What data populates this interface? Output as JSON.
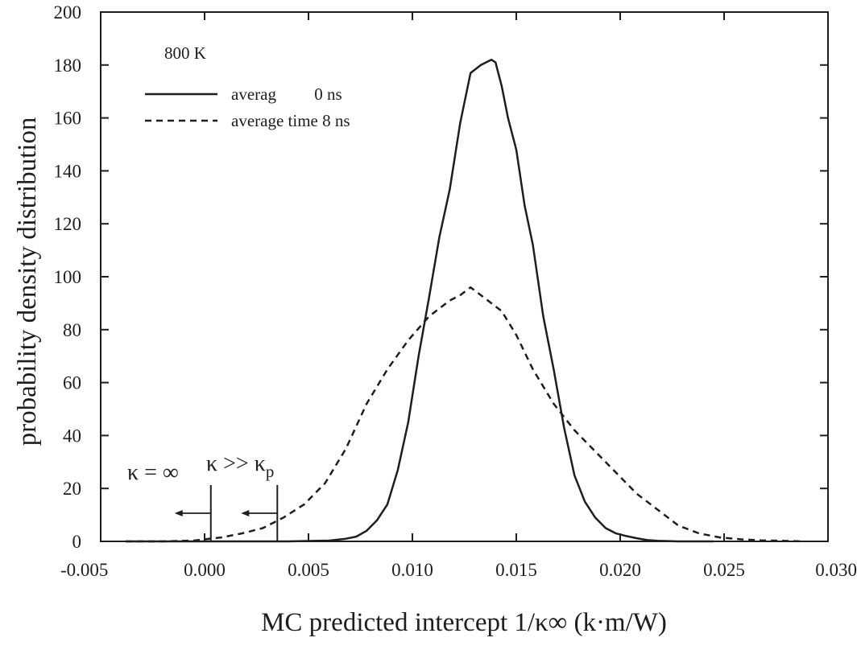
{
  "chart_data": {
    "type": "line",
    "title": "",
    "xlabel": "MC predicted intercept 1/κ∞ (k·m/W)",
    "ylabel": "probability density distribution",
    "xlim": [
      -0.005,
      0.03
    ],
    "ylim": [
      0,
      200
    ],
    "x_ticks": [
      -0.005,
      0.0,
      0.005,
      0.01,
      0.015,
      0.02,
      0.025,
      0.03
    ],
    "x_tick_labels": [
      "-0.005",
      "0.000",
      "0.005",
      "0.010",
      "0.015",
      "0.020",
      "0.025",
      "0.030"
    ],
    "y_ticks": [
      0,
      20,
      40,
      60,
      80,
      100,
      120,
      140,
      160,
      180,
      200
    ],
    "y_tick_labels": [
      "0",
      "20",
      "40",
      "60",
      "80",
      "100",
      "120",
      "140",
      "160",
      "180",
      "200"
    ],
    "grid": false,
    "legend_title": "800 K",
    "legend_position": "top-left",
    "series": [
      {
        "name": "averag         0 ns",
        "style": "solid",
        "x": [
          -0.0038,
          0.0,
          0.004,
          0.006,
          0.0068,
          0.0073,
          0.0078,
          0.0083,
          0.0088,
          0.0093,
          0.0098,
          0.0103,
          0.0108,
          0.0113,
          0.0118,
          0.0123,
          0.0128,
          0.0133,
          0.0138,
          0.014,
          0.0143,
          0.0146,
          0.015,
          0.0154,
          0.0158,
          0.0163,
          0.0168,
          0.0173,
          0.0178,
          0.0183,
          0.0188,
          0.0193,
          0.0198,
          0.0203,
          0.0208,
          0.0213,
          0.0218,
          0.0228,
          0.0245
        ],
        "y": [
          0,
          0,
          0,
          0.3,
          1,
          1.8,
          4,
          8,
          14,
          27,
          45,
          70,
          92,
          115,
          133,
          158,
          177,
          180,
          182,
          181,
          172,
          160,
          148,
          127,
          112,
          85,
          65,
          43,
          25,
          15,
          9,
          5,
          3,
          2,
          1.2,
          0.5,
          0.2,
          0,
          0
        ]
      },
      {
        "name": "average time 8 ns",
        "style": "dashed",
        "x": [
          -0.0038,
          -0.002,
          -0.0005,
          0.0,
          0.0008,
          0.0018,
          0.0028,
          0.0038,
          0.0048,
          0.0058,
          0.0068,
          0.0078,
          0.0088,
          0.0098,
          0.0108,
          0.0113,
          0.0118,
          0.0123,
          0.0128,
          0.0133,
          0.0143,
          0.015,
          0.0158,
          0.0168,
          0.0178,
          0.0188,
          0.0198,
          0.0208,
          0.0218,
          0.0228,
          0.0238,
          0.0248,
          0.0258,
          0.0268,
          0.0278,
          0.0288
        ],
        "y": [
          0,
          0,
          0.3,
          0.8,
          1.5,
          3,
          5,
          9,
          14,
          22,
          35,
          52,
          65,
          76,
          85,
          88,
          91,
          93,
          96,
          93,
          87,
          78,
          65,
          52,
          42,
          34,
          26,
          18,
          12,
          6,
          3,
          1.5,
          0.8,
          0.4,
          0.2,
          0
        ]
      }
    ],
    "annotations": [
      {
        "text_main": "κ = ∞",
        "text_sub": "",
        "marker_x": 0.0003,
        "arrow": "left"
      },
      {
        "text_main": "κ >> κ",
        "text_sub": "p",
        "marker_x": 0.0035,
        "arrow": "left"
      }
    ]
  }
}
